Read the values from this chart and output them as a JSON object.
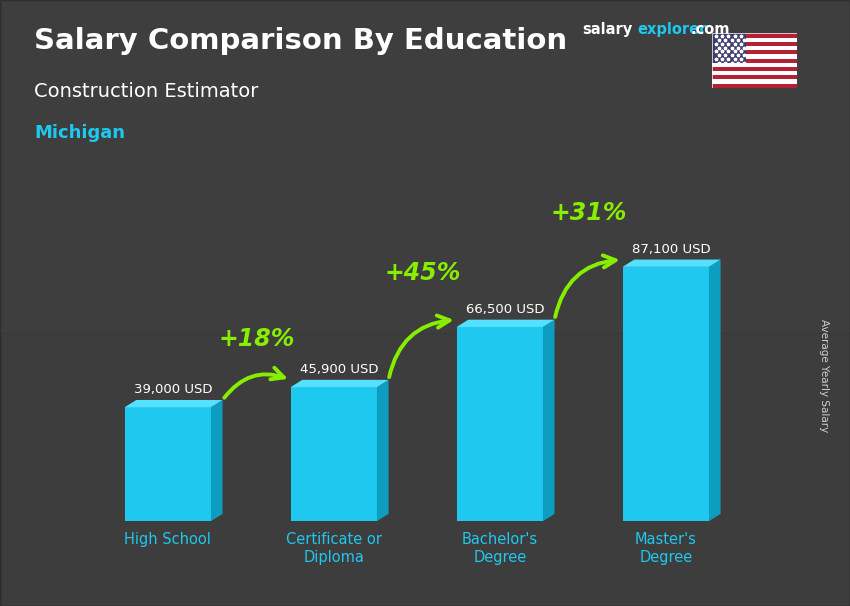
{
  "title_line1": "Salary Comparison By Education",
  "subtitle_line1": "Construction Estimator",
  "subtitle_line2": "Michigan",
  "categories": [
    "High School",
    "Certificate or\nDiploma",
    "Bachelor's\nDegree",
    "Master's\nDegree"
  ],
  "values": [
    39000,
    45900,
    66500,
    87100
  ],
  "value_labels": [
    "39,000 USD",
    "45,900 USD",
    "66,500 USD",
    "87,100 USD"
  ],
  "bar_color": "#1EC8EE",
  "bar_color_dark": "#0D9DC0",
  "bar_color_top": "#55E0FF",
  "bg_color": "#5a5a5a",
  "pct_labels": [
    "+18%",
    "+45%",
    "+31%"
  ],
  "pct_color": "#88EE00",
  "ylabel": "Average Yearly Salary",
  "ylim": [
    0,
    110000
  ],
  "bar_width": 0.52,
  "xtick_color": "#1EC8EE",
  "value_label_color": "#ffffff",
  "title_color": "#ffffff",
  "subtitle_color": "#ffffff",
  "michigan_color": "#1EC8EE",
  "salary_color": "#ffffff",
  "explorer_color": "#1EC8EE",
  "site_suffix_color": "#ffffff"
}
